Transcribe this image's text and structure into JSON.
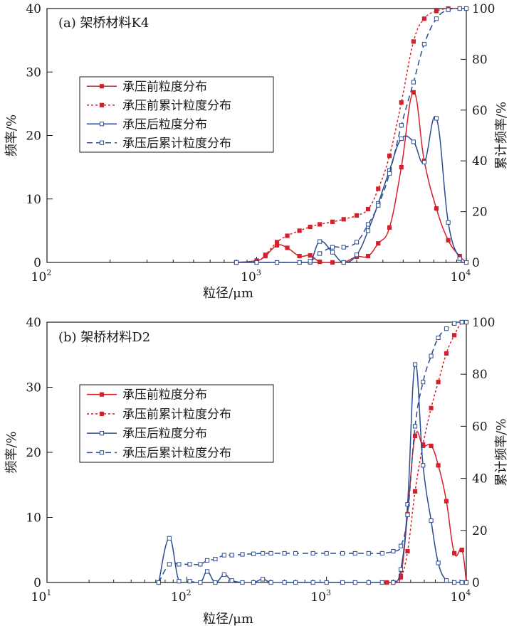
{
  "chart_data": [
    {
      "type": "line",
      "panel_label": "(a) 架桥材料K4",
      "xlabel": "粒径/μm",
      "ylabel_left": "频率/%",
      "ylabel_right": "累计频率/%",
      "xscale": "log",
      "xlim": [
        100,
        10000
      ],
      "x_ticks": [
        100,
        1000,
        10000
      ],
      "x_tick_labels": [
        {
          "base": "10",
          "exp": "2"
        },
        {
          "base": "10",
          "exp": "3"
        },
        {
          "base": "10",
          "exp": "4"
        }
      ],
      "ylim_left": [
        0,
        40
      ],
      "yticks_left": [
        0,
        10,
        20,
        30,
        40
      ],
      "ylim_right": [
        0,
        100
      ],
      "yticks_right": [
        0,
        20,
        40,
        60,
        80,
        100
      ],
      "legend_position": "upper-left",
      "series": [
        {
          "name": "承压前粒度分布",
          "axis": "left",
          "color": "#d4202a",
          "line": "solid",
          "marker": "filled-square",
          "points": [
            [
              800,
              0
            ],
            [
              1000,
              0.3
            ],
            [
              1100,
              1.0
            ],
            [
              1250,
              2.7
            ],
            [
              1400,
              2.3
            ],
            [
              1600,
              1.0
            ],
            [
              1800,
              1.1
            ],
            [
              2000,
              0.1
            ],
            [
              2300,
              0
            ],
            [
              2600,
              0
            ],
            [
              3000,
              0.9
            ],
            [
              3400,
              1.0
            ],
            [
              3800,
              3.0
            ],
            [
              4300,
              5.5
            ],
            [
              4900,
              15.0
            ],
            [
              5600,
              26.8
            ],
            [
              6300,
              16.0
            ],
            [
              7200,
              8.5
            ],
            [
              8200,
              3.5
            ],
            [
              9300,
              1.0
            ],
            [
              10000,
              0
            ]
          ]
        },
        {
          "name": "承压前累计粒度分布",
          "axis": "right",
          "color": "#d4202a",
          "line": "dotted",
          "marker": "filled-square",
          "points": [
            [
              800,
              0
            ],
            [
              1000,
              0.5
            ],
            [
              1100,
              3
            ],
            [
              1250,
              8
            ],
            [
              1400,
              10.5
            ],
            [
              1600,
              12.5
            ],
            [
              1800,
              14
            ],
            [
              2000,
              15
            ],
            [
              2300,
              16
            ],
            [
              2600,
              17
            ],
            [
              3000,
              18.5
            ],
            [
              3400,
              21
            ],
            [
              3800,
              29
            ],
            [
              4300,
              42
            ],
            [
              4900,
              63
            ],
            [
              5600,
              87
            ],
            [
              6300,
              96
            ],
            [
              7200,
              99
            ],
            [
              8200,
              100
            ],
            [
              9300,
              100
            ],
            [
              10000,
              100
            ]
          ]
        },
        {
          "name": "承压后粒度分布",
          "axis": "left",
          "color": "#2b4c8e",
          "line": "solid",
          "marker": "open-square",
          "points": [
            [
              800,
              0
            ],
            [
              1000,
              0
            ],
            [
              1250,
              0
            ],
            [
              1600,
              0
            ],
            [
              1800,
              0
            ],
            [
              2000,
              3.3
            ],
            [
              2300,
              1.6
            ],
            [
              2600,
              0
            ],
            [
              3000,
              1.2
            ],
            [
              3400,
              5.0
            ],
            [
              3800,
              9.3
            ],
            [
              4300,
              14.5
            ],
            [
              4900,
              19.5
            ],
            [
              5600,
              19.0
            ],
            [
              6300,
              15.8
            ],
            [
              7200,
              22.7
            ],
            [
              8200,
              6.3
            ],
            [
              9300,
              0.6
            ],
            [
              10000,
              0
            ]
          ]
        },
        {
          "name": "承压后累计粒度分布",
          "axis": "right",
          "color": "#2b4c8e",
          "line": "dashed",
          "marker": "open-square",
          "points": [
            [
              800,
              0
            ],
            [
              1000,
              0
            ],
            [
              1250,
              0
            ],
            [
              1600,
              0
            ],
            [
              1800,
              0.5
            ],
            [
              2000,
              3.5
            ],
            [
              2300,
              6
            ],
            [
              2600,
              6
            ],
            [
              3000,
              8
            ],
            [
              3400,
              15
            ],
            [
              3800,
              22.5
            ],
            [
              4300,
              35
            ],
            [
              4900,
              54
            ],
            [
              5600,
              71
            ],
            [
              6300,
              86
            ],
            [
              7200,
              96
            ],
            [
              8200,
              99.5
            ],
            [
              9300,
              100
            ],
            [
              10000,
              100
            ]
          ]
        }
      ]
    },
    {
      "type": "line",
      "panel_label": "(b) 架桥材料D2",
      "xlabel": "粒径/μm",
      "ylabel_left": "频率/%",
      "ylabel_right": "累计频率/%",
      "xscale": "log",
      "xlim": [
        10,
        10000
      ],
      "x_ticks": [
        10,
        100,
        1000,
        10000
      ],
      "x_tick_labels": [
        {
          "base": "10",
          "exp": "1"
        },
        {
          "base": "10",
          "exp": "2"
        },
        {
          "base": "10",
          "exp": "3"
        },
        {
          "base": "10",
          "exp": "4"
        }
      ],
      "ylim_left": [
        0,
        40
      ],
      "yticks_left": [
        0,
        10,
        20,
        30,
        40
      ],
      "ylim_right": [
        0,
        100
      ],
      "yticks_right": [
        0,
        20,
        40,
        60,
        80,
        100
      ],
      "legend_position": "upper-left",
      "series": [
        {
          "name": "承压前粒度分布",
          "axis": "left",
          "color": "#d4202a",
          "line": "solid",
          "marker": "filled-square",
          "points": [
            [
              2700,
              0
            ],
            [
              3000,
              0
            ],
            [
              3400,
              1.0
            ],
            [
              3800,
              10.5
            ],
            [
              4300,
              22.5
            ],
            [
              4900,
              21.0
            ],
            [
              5600,
              21.0
            ],
            [
              6300,
              18.0
            ],
            [
              7200,
              12.5
            ],
            [
              8200,
              4.5
            ],
            [
              9300,
              5.0
            ],
            [
              10000,
              0
            ]
          ]
        },
        {
          "name": "承压前累计粒度分布",
          "axis": "right",
          "color": "#d4202a",
          "line": "dotted",
          "marker": "filled-square",
          "points": [
            [
              2700,
              0
            ],
            [
              3000,
              0
            ],
            [
              3400,
              2
            ],
            [
              3800,
              12
            ],
            [
              4300,
              35
            ],
            [
              4900,
              53
            ],
            [
              5600,
              67
            ],
            [
              6300,
              77
            ],
            [
              7200,
              88
            ],
            [
              8200,
              95
            ],
            [
              9300,
              100
            ],
            [
              10000,
              100
            ]
          ]
        },
        {
          "name": "承压后粒度分布",
          "axis": "left",
          "color": "#2b4c8e",
          "line": "solid",
          "marker": "open-square",
          "points": [
            [
              63,
              0
            ],
            [
              75,
              6.8
            ],
            [
              88,
              0.2
            ],
            [
              105,
              0.2
            ],
            [
              125,
              0
            ],
            [
              140,
              1.7
            ],
            [
              160,
              0
            ],
            [
              185,
              1.2
            ],
            [
              210,
              0.3
            ],
            [
              250,
              0
            ],
            [
              300,
              0
            ],
            [
              350,
              0.5
            ],
            [
              400,
              0
            ],
            [
              500,
              0
            ],
            [
              600,
              0
            ],
            [
              800,
              0
            ],
            [
              1000,
              0
            ],
            [
              1300,
              0
            ],
            [
              1600,
              0
            ],
            [
              2000,
              0
            ],
            [
              2500,
              0
            ],
            [
              3000,
              0
            ],
            [
              3400,
              2.0
            ],
            [
              3800,
              12.0
            ],
            [
              4300,
              33.5
            ],
            [
              4900,
              18.0
            ],
            [
              5600,
              9.5
            ],
            [
              6300,
              3.0
            ],
            [
              7200,
              0.3
            ],
            [
              8200,
              0
            ],
            [
              9300,
              0
            ],
            [
              10000,
              0
            ]
          ]
        },
        {
          "name": "承压后累计粒度分布",
          "axis": "right",
          "color": "#2b4c8e",
          "line": "dashed",
          "marker": "open-square",
          "points": [
            [
              63,
              0
            ],
            [
              75,
              7
            ],
            [
              88,
              7
            ],
            [
              105,
              7
            ],
            [
              125,
              7
            ],
            [
              140,
              8.5
            ],
            [
              160,
              9
            ],
            [
              185,
              10.5
            ],
            [
              210,
              10.5
            ],
            [
              250,
              10.8
            ],
            [
              300,
              11
            ],
            [
              350,
              11.2
            ],
            [
              400,
              11.2
            ],
            [
              500,
              11.2
            ],
            [
              600,
              11.2
            ],
            [
              800,
              11.2
            ],
            [
              1000,
              11.2
            ],
            [
              1300,
              11.2
            ],
            [
              1600,
              11.2
            ],
            [
              2000,
              11.2
            ],
            [
              2500,
              11.2
            ],
            [
              3000,
              12
            ],
            [
              3400,
              14
            ],
            [
              3800,
              26
            ],
            [
              4300,
              60
            ],
            [
              4900,
              77
            ],
            [
              5600,
              87
            ],
            [
              6300,
              94
            ],
            [
              7200,
              97.5
            ],
            [
              8200,
              99.5
            ],
            [
              9300,
              100
            ],
            [
              10000,
              100
            ]
          ]
        }
      ]
    }
  ]
}
